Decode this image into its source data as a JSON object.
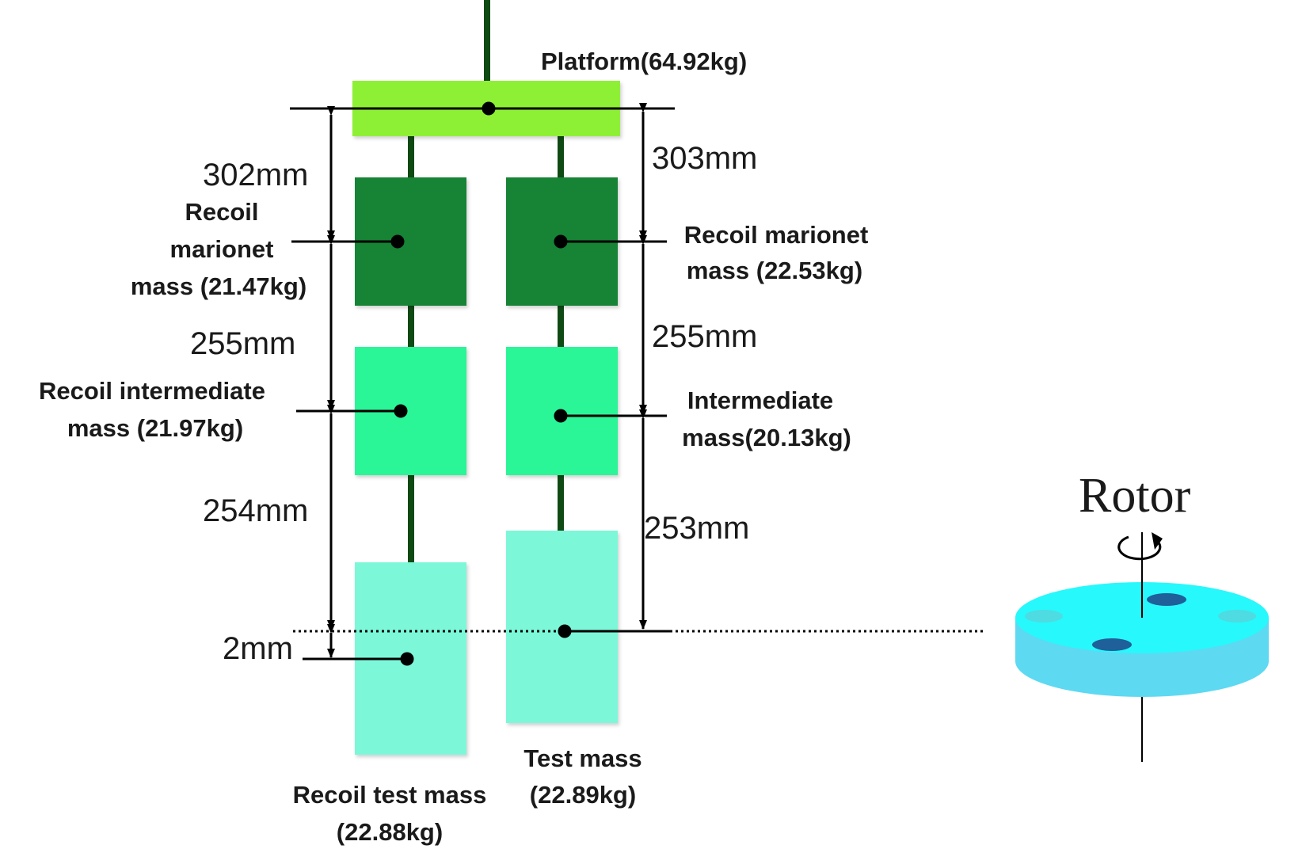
{
  "platform": {
    "label": "Platform(64.92kg)"
  },
  "left_chain": {
    "marionet_lines": [
      "Recoil",
      "marionet",
      "mass (21.47kg)"
    ],
    "intermediate_lines": [
      "Recoil intermediate",
      "mass (21.97kg)"
    ],
    "test_lines": [
      "Recoil test mass",
      "(22.88kg)"
    ]
  },
  "right_chain": {
    "marionet_lines": [
      "Recoil marionet",
      "mass (22.53kg)"
    ],
    "intermediate_lines": [
      "Intermediate",
      "mass(20.13kg)"
    ],
    "test_lines": [
      "Test mass",
      "(22.89kg)"
    ]
  },
  "dimensions": {
    "left": [
      "302mm",
      "255mm",
      "254mm",
      "2mm"
    ],
    "right": [
      "303mm",
      "255mm",
      "253mm"
    ]
  },
  "rotor": {
    "label": "Rotor"
  },
  "colors": {
    "platform": "#8ef035",
    "marionet": "#178335",
    "intermediate": "#2af597",
    "test_mass": "#7bf8d9",
    "wire": "#0f4a14",
    "rotor_top": "#27f8fb",
    "rotor_side": "#5dd9f2",
    "rotor_hole": "#1f5f9a"
  }
}
